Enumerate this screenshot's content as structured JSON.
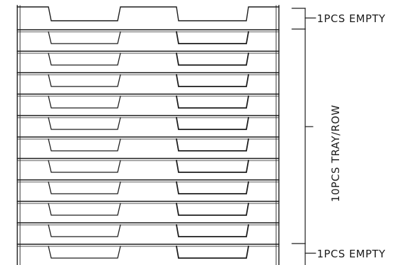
{
  "diagram": {
    "tray_count": 12,
    "labels": {
      "top": "1PCS  EMPTY",
      "middle": "10PCS  TRAY/ROW",
      "bottom": "1PCS  EMPTY"
    }
  }
}
